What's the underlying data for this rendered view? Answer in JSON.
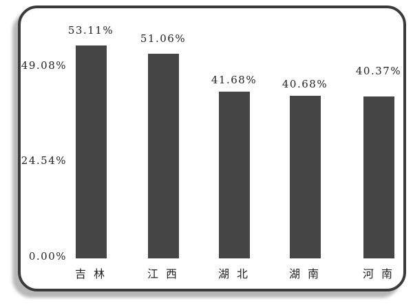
{
  "chart_data": {
    "type": "bar",
    "title": "",
    "xlabel": "",
    "ylabel": "",
    "categories": [
      "吉 林",
      "江 西",
      "湖 北",
      "湖 南",
      "河 南"
    ],
    "values": [
      53.11,
      51.06,
      41.68,
      40.68,
      40.37
    ],
    "value_labels": [
      "53.11%",
      "51.06%",
      "41.68%",
      "40.68%",
      "40.37%"
    ],
    "y_ticks": [
      {
        "label": "0.00%",
        "value": 0
      },
      {
        "label": "24.54%",
        "value": 24.54
      },
      {
        "label": "49.08%",
        "value": 49.08
      }
    ],
    "ylim": [
      0,
      62
    ],
    "grid": false,
    "legend": null,
    "colors": {
      "bar_fill": "#454545",
      "frame_border": "#3a3a3a",
      "text": "#222222",
      "shadow": "#b8b8b8",
      "plot_background": "#fefefe",
      "page_background": "#ffffff"
    }
  }
}
